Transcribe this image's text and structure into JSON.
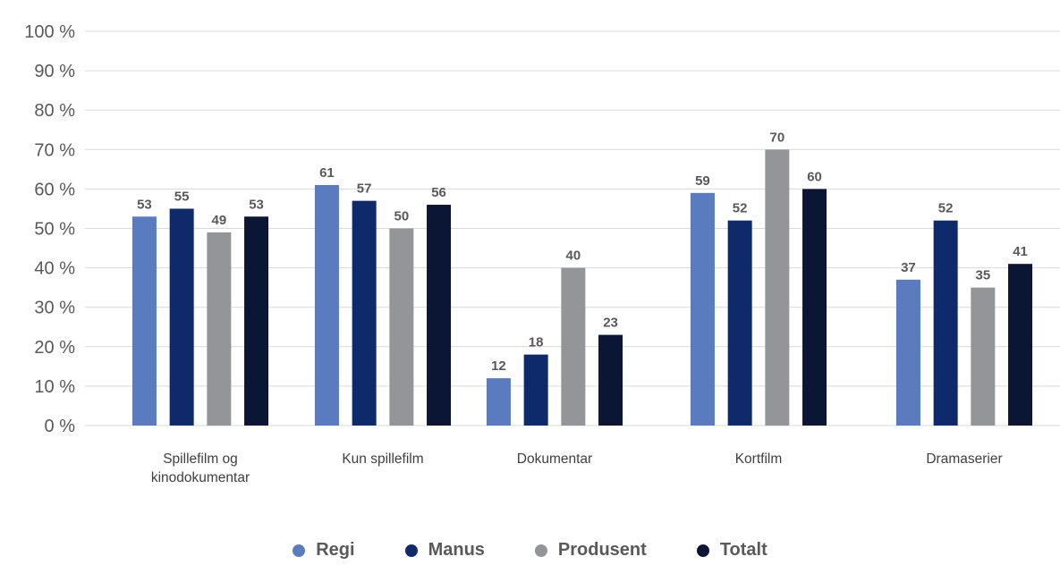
{
  "chart_data": {
    "type": "bar",
    "categories": [
      [
        "Spillefilm og",
        "kinodokumentar"
      ],
      [
        "Kun spillefilm"
      ],
      [
        "Dokumentar"
      ],
      [
        "Kortfilm"
      ],
      [
        "Dramaserier"
      ]
    ],
    "series": [
      {
        "name": "Regi",
        "color": "#5b7bbf",
        "values": [
          53,
          61,
          12,
          59,
          37
        ]
      },
      {
        "name": "Manus",
        "color": "#0f2a6b",
        "values": [
          55,
          57,
          18,
          52,
          52
        ]
      },
      {
        "name": "Produsent",
        "color": "#939598",
        "values": [
          49,
          50,
          40,
          70,
          35
        ]
      },
      {
        "name": "Totalt",
        "color": "#0b1635",
        "values": [
          53,
          56,
          23,
          60,
          41
        ]
      }
    ],
    "y_ticks": [
      "0 %",
      "10 %",
      "20 %",
      "30 %",
      "40 %",
      "50 %",
      "60 %",
      "70 %",
      "80 %",
      "90 %",
      "100 %"
    ],
    "ylim": [
      0,
      100
    ],
    "grid": true,
    "legend_position": "bottom-center"
  }
}
